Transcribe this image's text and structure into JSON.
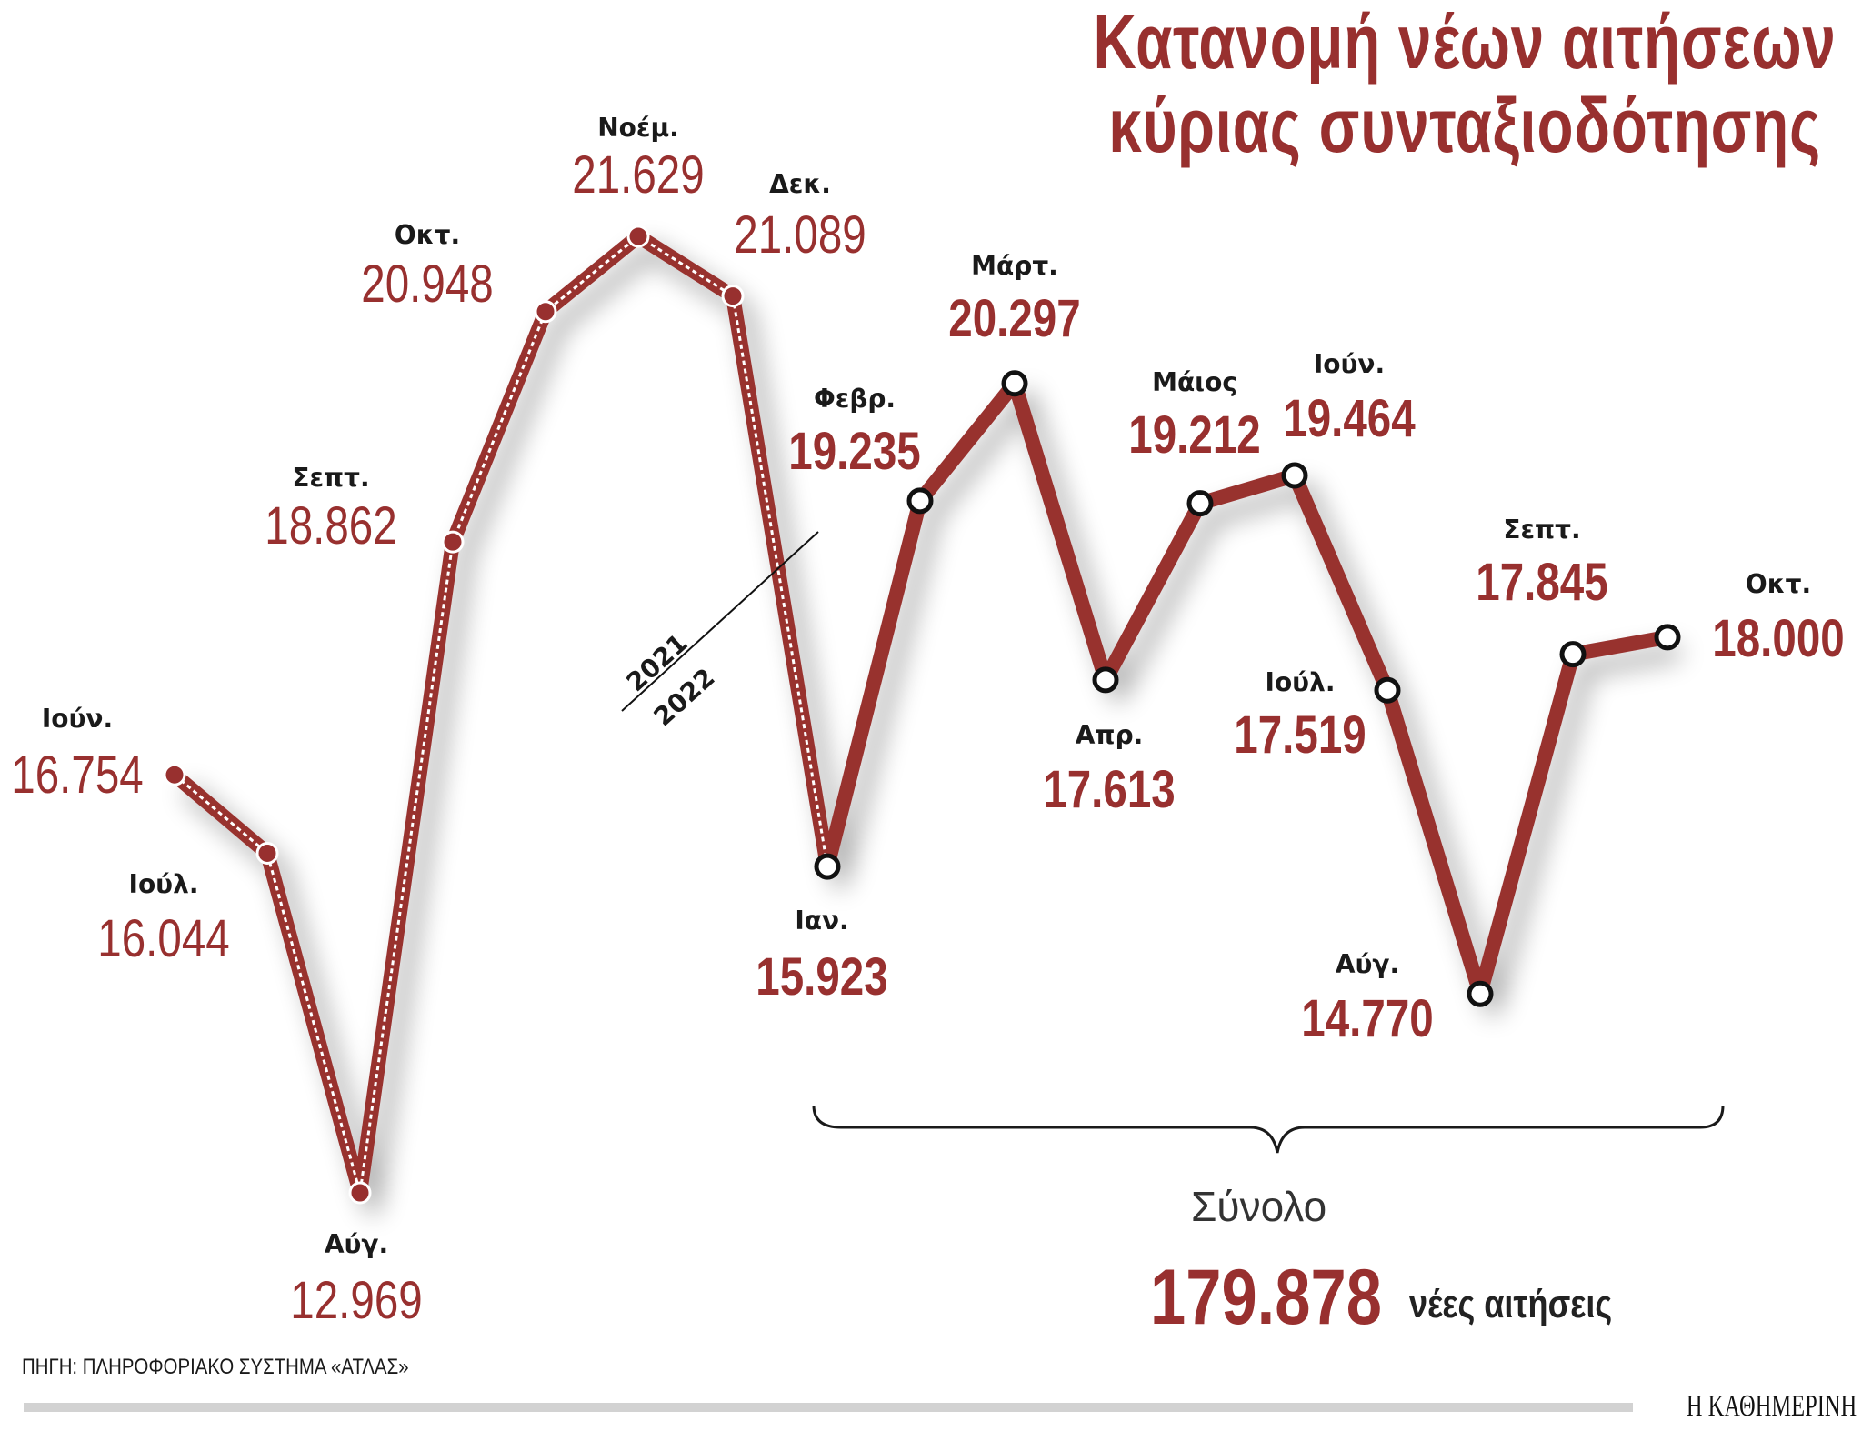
{
  "title": {
    "line1": "Κατανομή νέων αιτήσεων",
    "line2": "κύριας συνταξιοδότησης"
  },
  "colors": {
    "accent": "#98302f",
    "text": "#1a1a1a",
    "footer_bar": "#d2d2d2"
  },
  "year_divider": {
    "upper": "2021",
    "lower": "2022"
  },
  "total": {
    "label": "Σύνολο",
    "value": "179.878",
    "unit": "νέες αιτήσεις"
  },
  "source": "ΠΗΓΗ: ΠΛΗΡΟΦΟΡΙΑΚΟ ΣΥΣΤΗΜΑ «ΑΤΛΑΣ»",
  "brand": "Η ΚΑΘΗΜΕΡΙΝΗ",
  "points": [
    {
      "month": "Ιούν.",
      "value": "16.754",
      "year": 2021
    },
    {
      "month": "Ιούλ.",
      "value": "16.044",
      "year": 2021
    },
    {
      "month": "Αύγ.",
      "value": "12.969",
      "year": 2021
    },
    {
      "month": "Σεπτ.",
      "value": "18.862",
      "year": 2021
    },
    {
      "month": "Οκτ.",
      "value": "20.948",
      "year": 2021
    },
    {
      "month": "Νοέμ.",
      "value": "21.629",
      "year": 2021
    },
    {
      "month": "Δεκ.",
      "value": "21.089",
      "year": 2021
    },
    {
      "month": "Ιαν.",
      "value": "15.923",
      "year": 2022
    },
    {
      "month": "Φεβρ.",
      "value": "19.235",
      "year": 2022
    },
    {
      "month": "Μάρτ.",
      "value": "20.297",
      "year": 2022
    },
    {
      "month": "Απρ.",
      "value": "17.613",
      "year": 2022
    },
    {
      "month": "Μάιος",
      "value": "19.212",
      "year": 2022
    },
    {
      "month": "Ιούν.",
      "value": "19.464",
      "year": 2022
    },
    {
      "month": "Ιούλ.",
      "value": "17.519",
      "year": 2022
    },
    {
      "month": "Αύγ.",
      "value": "14.770",
      "year": 2022
    },
    {
      "month": "Σεπτ.",
      "value": "17.845",
      "year": 2022
    },
    {
      "month": "Οκτ.",
      "value": "18.000",
      "year": 2022
    }
  ],
  "chart_data": {
    "type": "line",
    "title": "Κατανομή νέων αιτήσεων κύριας συνταξιοδότησης",
    "xlabel": "",
    "ylabel": "",
    "categories": [
      "Ιούν. 2021",
      "Ιούλ. 2021",
      "Αύγ. 2021",
      "Σεπτ. 2021",
      "Οκτ. 2021",
      "Νοέμ. 2021",
      "Δεκ. 2021",
      "Ιαν. 2022",
      "Φεβρ. 2022",
      "Μάρτ. 2022",
      "Απρ. 2022",
      "Μάιος 2022",
      "Ιούν. 2022",
      "Ιούλ. 2022",
      "Αύγ. 2022",
      "Σεπτ. 2022",
      "Οκτ. 2022"
    ],
    "series": [
      {
        "name": "2021",
        "values": [
          16754,
          16044,
          12969,
          18862,
          20948,
          21629,
          21089
        ]
      },
      {
        "name": "2022",
        "values": [
          15923,
          19235,
          20297,
          17613,
          19212,
          19464,
          17519,
          14770,
          17845,
          18000
        ]
      }
    ],
    "values": [
      16754,
      16044,
      12969,
      18862,
      20948,
      21629,
      21089,
      15923,
      19235,
      20297,
      17613,
      19212,
      19464,
      17519,
      14770,
      17845,
      18000
    ],
    "annotations": [
      "2021 / 2022 divider",
      "Σύνολο 179.878 νέες αιτήσεις (Ιαν.–Οκτ. 2022)"
    ],
    "source": "ΠΗΓΗ: ΠΛΗΡΟΦΟΡΙΑΚΟ ΣΥΣΤΗΜΑ «ΑΤΛΑΣ»",
    "grid": false,
    "legend": "none"
  }
}
